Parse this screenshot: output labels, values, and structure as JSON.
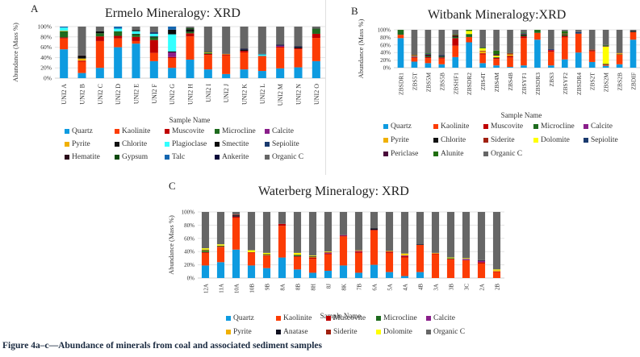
{
  "caption": "Figure 4a–c—Abundance of minerals from coal and associated sediment samples",
  "colors": {
    "Quartz": "#0e9be0",
    "Kaolinite": "#fc3c04",
    "Muscovite": "#c00000",
    "Microcline": "#1e6b1e",
    "Calcite": "#8a1e8a",
    "Pyrite": "#f0b000",
    "Chlorite": "#111111",
    "Plagioclase": "#33ffff",
    "Smectite": "#0b0b0b",
    "Sepiolite": "#1a3a6e",
    "Hematite": "#2a0a1a",
    "Gypsum": "#0e4a0e",
    "Talc": "#1466b0",
    "Ankerite": "#0a0a3a",
    "Organic C": "#666666",
    "Siderite": "#a02010",
    "Dolomite": "#ffff00",
    "Periclase": "#4a0a3a",
    "Alunite": "#1f6e0f",
    "Anatase": "#101020"
  },
  "chart_data": [
    {
      "id": "A",
      "type": "bar",
      "stacked": true,
      "panel_label": "A",
      "title": "Ermelo Mineralogy: XRD",
      "xlabel": "Sample Name",
      "ylabel": "Abundance (Mass %)",
      "ylim": [
        0,
        100
      ],
      "yticks": [
        "0%",
        "20%",
        "40%",
        "60%",
        "80%",
        "100%"
      ],
      "grid": true,
      "legend_position": "bottom",
      "categories": [
        "UNI2 A",
        "UNI2 B",
        "UNI2 C",
        "UNI2 D",
        "UNI2 E",
        "UNI2 F",
        "UNI2 G",
        "UNI2 H",
        "UNI2 I",
        "UNI2 J",
        "UNI2 K",
        "UNI2 L",
        "UNI2 M",
        "UNI2 N",
        "UNI2 O"
      ],
      "legend": [
        "Quartz",
        "Kaolinite",
        "Muscovite",
        "Microcline",
        "Calcite",
        "Pyrite",
        "Chlorite",
        "Plagioclase",
        "Smectite",
        "Sepiolite",
        "Hematite",
        "Gypsum",
        "Talc",
        "Ankerite",
        "Organic C"
      ],
      "series": [
        {
          "name": "Quartz",
          "values": [
            56,
            10,
            20,
            60,
            67,
            33,
            20,
            36,
            17,
            8,
            17,
            14,
            19,
            21,
            33
          ]
        },
        {
          "name": "Kaolinite",
          "values": [
            21,
            22,
            52,
            17,
            5,
            16,
            19,
            45,
            28,
            36,
            33,
            28,
            40,
            35,
            45
          ]
        },
        {
          "name": "Muscovite",
          "values": [
            2,
            2,
            9,
            5,
            8,
            25,
            2,
            6,
            2,
            2,
            3,
            1,
            2,
            2,
            8
          ]
        },
        {
          "name": "Microcline",
          "values": [
            12,
            0,
            6,
            9,
            5,
            5,
            0,
            3,
            2,
            0,
            0,
            0,
            0,
            0,
            8
          ]
        },
        {
          "name": "Calcite",
          "values": [
            0,
            0,
            0,
            0,
            0,
            0,
            9,
            0,
            0,
            0,
            0,
            0,
            2,
            0,
            0
          ]
        },
        {
          "name": "Pyrite",
          "values": [
            1,
            4,
            0,
            0,
            0,
            0,
            0,
            0,
            1,
            1,
            0,
            0,
            0,
            0,
            0
          ]
        },
        {
          "name": "Chlorite",
          "values": [
            0,
            1,
            0,
            0,
            1,
            2,
            2,
            0,
            0,
            0,
            0,
            0,
            0,
            0,
            0
          ]
        },
        {
          "name": "Plagioclase",
          "values": [
            6,
            0,
            0,
            5,
            5,
            5,
            33,
            0,
            0,
            0,
            0,
            3,
            0,
            0,
            0
          ]
        },
        {
          "name": "Smectite",
          "values": [
            0,
            4,
            4,
            0,
            2,
            0,
            9,
            5,
            0,
            0,
            2,
            0,
            0,
            2,
            0
          ]
        },
        {
          "name": "Sepiolite",
          "values": [
            0,
            0,
            0,
            0,
            0,
            3,
            0,
            0,
            0,
            0,
            0,
            1,
            0,
            0,
            0
          ]
        },
        {
          "name": "Hematite",
          "values": [
            0,
            1,
            0,
            0,
            0,
            0,
            0,
            0,
            0,
            0,
            0,
            0,
            0,
            0,
            0
          ]
        },
        {
          "name": "Gypsum",
          "values": [
            0,
            0,
            0,
            0,
            0,
            0,
            0,
            2,
            1,
            0,
            0,
            0,
            0,
            0,
            2
          ]
        },
        {
          "name": "Talc",
          "values": [
            2,
            0,
            0,
            4,
            0,
            0,
            6,
            0,
            0,
            0,
            0,
            0,
            0,
            0,
            0
          ]
        },
        {
          "name": "Ankerite",
          "values": [
            0,
            0,
            0,
            0,
            0,
            0,
            0,
            0,
            0,
            0,
            2,
            0,
            2,
            2,
            0
          ]
        },
        {
          "name": "Organic C",
          "values": [
            0,
            56,
            9,
            0,
            7,
            11,
            0,
            3,
            49,
            53,
            43,
            53,
            35,
            38,
            4
          ]
        }
      ]
    },
    {
      "id": "B",
      "type": "bar",
      "stacked": true,
      "panel_label": "B",
      "title": "Witbank Mineralogy:XRD",
      "xlabel": "Sample Name",
      "ylabel": "Abundance (Mass %)",
      "ylim": [
        0,
        100
      ],
      "yticks": [
        "0%",
        "20%",
        "40%",
        "60%",
        "80%",
        "100%"
      ],
      "grid": true,
      "legend_position": "bottom",
      "categories": [
        "ZBSDR1",
        "ZBS5T",
        "ZBS5M",
        "ZBS5B",
        "ZBSHF1",
        "ZBSDR2",
        "ZBS4T",
        "ZBS4M",
        "ZBS4B",
        "ZBSYF1",
        "ZBSDR3",
        "ZBS3",
        "ZBSYF2",
        "ZBSDR4",
        "ZBS2T",
        "ZBS2M",
        "ZBS2B",
        "ZBDIF"
      ],
      "legend": [
        "Quartz",
        "Kaolinite",
        "Muscovite",
        "Microcline",
        "Calcite",
        "Pyrite",
        "Chlorite",
        "Siderite",
        "Dolomite",
        "Sepiolite",
        "Periclase",
        "Alunite",
        "Organic C"
      ],
      "series": [
        {
          "name": "Quartz",
          "values": [
            78,
            16,
            12,
            9,
            28,
            67,
            12,
            6,
            2,
            6,
            74,
            6,
            22,
            40,
            15,
            5,
            9,
            74
          ]
        },
        {
          "name": "Kaolinite",
          "values": [
            9,
            10,
            13,
            15,
            30,
            14,
            23,
            17,
            25,
            72,
            18,
            36,
            58,
            50,
            28,
            3,
            26,
            20
          ]
        },
        {
          "name": "Muscovite",
          "values": [
            0,
            2,
            3,
            3,
            20,
            0,
            3,
            3,
            4,
            5,
            0,
            4,
            4,
            0,
            3,
            0,
            0,
            0
          ]
        },
        {
          "name": "Microcline",
          "values": [
            12,
            1,
            2,
            2,
            3,
            8,
            0,
            2,
            0,
            2,
            6,
            0,
            4,
            0,
            1,
            0,
            1,
            0
          ]
        },
        {
          "name": "Calcite",
          "values": [
            0,
            2,
            0,
            0,
            0,
            0,
            0,
            0,
            0,
            0,
            0,
            1,
            0,
            0,
            0,
            0,
            0,
            0
          ]
        },
        {
          "name": "Pyrite",
          "values": [
            0,
            2,
            0,
            0,
            0,
            0,
            5,
            0,
            4,
            0,
            0,
            0,
            0,
            0,
            0,
            0,
            2,
            0
          ]
        },
        {
          "name": "Chlorite",
          "values": [
            0,
            1,
            3,
            2,
            3,
            0,
            0,
            0,
            0,
            3,
            0,
            0,
            0,
            0,
            0,
            2,
            0,
            3
          ]
        },
        {
          "name": "Siderite",
          "values": [
            0,
            0,
            1,
            0,
            2,
            0,
            2,
            0,
            3,
            1,
            0,
            0,
            2,
            0,
            1,
            0,
            1,
            0
          ]
        },
        {
          "name": "Dolomite",
          "values": [
            0,
            0,
            0,
            0,
            0,
            8,
            6,
            4,
            0,
            0,
            0,
            0,
            0,
            0,
            0,
            46,
            0,
            0
          ]
        },
        {
          "name": "Sepiolite",
          "values": [
            0,
            0,
            2,
            2,
            0,
            0,
            0,
            0,
            0,
            2,
            0,
            2,
            0,
            4,
            0,
            0,
            0,
            0
          ]
        },
        {
          "name": "Periclase",
          "values": [
            0,
            0,
            0,
            0,
            0,
            0,
            0,
            3,
            0,
            0,
            0,
            0,
            0,
            0,
            0,
            2,
            0,
            0
          ]
        },
        {
          "name": "Alunite",
          "values": [
            1,
            0,
            2,
            0,
            2,
            3,
            2,
            10,
            1,
            2,
            2,
            0,
            6,
            0,
            0,
            2,
            0,
            0
          ]
        },
        {
          "name": "Organic C",
          "values": [
            0,
            66,
            62,
            67,
            12,
            0,
            47,
            55,
            61,
            7,
            0,
            51,
            4,
            6,
            52,
            40,
            61,
            3
          ]
        }
      ]
    },
    {
      "id": "C",
      "type": "bar",
      "stacked": true,
      "panel_label": "C",
      "title": "Waterberg Mineralogy: XRD",
      "xlabel": "Sample Name",
      "ylabel": "Abundance (Mass %)",
      "ylim": [
        0,
        100
      ],
      "yticks": [
        "0%",
        "20%",
        "40%",
        "60%",
        "80%",
        "100%"
      ],
      "grid": true,
      "legend_position": "bottom",
      "categories": [
        "12A",
        "11A",
        "10A",
        "10B",
        "9B",
        "8A",
        "8B",
        "8H",
        "8J",
        "8K",
        "7B",
        "6A",
        "5A",
        "4A",
        "4B",
        "3A",
        "3B",
        "3C",
        "2A",
        "2B"
      ],
      "legend": [
        "Quartz",
        "Kaolinite",
        "Muscovite",
        "Microcline",
        "Calcite",
        "Pyrite",
        "Anatase",
        "Siderite",
        "Dolomite",
        "Organic C"
      ],
      "series": [
        {
          "name": "Quartz",
          "values": [
            19,
            24,
            43,
            19,
            15,
            31,
            13,
            8,
            11,
            19,
            8,
            20,
            9,
            3,
            9,
            0,
            0,
            0,
            0,
            0
          ]
        },
        {
          "name": "Kaolinite",
          "values": [
            19,
            22,
            48,
            19,
            18,
            48,
            19,
            21,
            25,
            44,
            30,
            52,
            29,
            28,
            41,
            36,
            28,
            27,
            22,
            9
          ]
        },
        {
          "name": "Muscovite",
          "values": [
            1,
            1,
            2,
            1,
            1,
            3,
            1,
            2,
            1,
            1,
            2,
            1,
            2,
            2,
            0,
            1,
            1,
            0,
            2,
            1
          ]
        },
        {
          "name": "Microcline",
          "values": [
            2,
            0,
            0,
            0,
            0,
            0,
            2,
            0,
            0,
            0,
            0,
            0,
            0,
            0,
            0,
            0,
            1,
            0,
            0,
            0
          ]
        },
        {
          "name": "Calcite",
          "values": [
            0,
            0,
            0,
            0,
            0,
            0,
            0,
            0,
            1,
            1,
            1,
            0,
            0,
            1,
            0,
            0,
            0,
            2,
            2,
            0
          ]
        },
        {
          "name": "Pyrite",
          "values": [
            1,
            1,
            0,
            0,
            1,
            0,
            1,
            1,
            0,
            0,
            1,
            0,
            1,
            2,
            0,
            1,
            0,
            0,
            0,
            2
          ]
        },
        {
          "name": "Anatase",
          "values": [
            1,
            1,
            2,
            0,
            1,
            0,
            0,
            1,
            0,
            0,
            0,
            2,
            0,
            0,
            1,
            0,
            0,
            0,
            1,
            0
          ]
        },
        {
          "name": "Siderite",
          "values": [
            0,
            0,
            1,
            0,
            0,
            0,
            0,
            0,
            1,
            0,
            0,
            0,
            0,
            0,
            0,
            0,
            0,
            0,
            0,
            0
          ]
        },
        {
          "name": "Dolomite",
          "values": [
            2,
            2,
            0,
            3,
            2,
            0,
            2,
            1,
            1,
            0,
            0,
            0,
            0,
            1,
            0,
            0,
            1,
            1,
            0,
            1
          ]
        },
        {
          "name": "Organic C",
          "values": [
            55,
            49,
            4,
            58,
            62,
            18,
            62,
            66,
            60,
            35,
            58,
            25,
            59,
            63,
            49,
            62,
            69,
            70,
            73,
            87
          ]
        }
      ]
    }
  ]
}
